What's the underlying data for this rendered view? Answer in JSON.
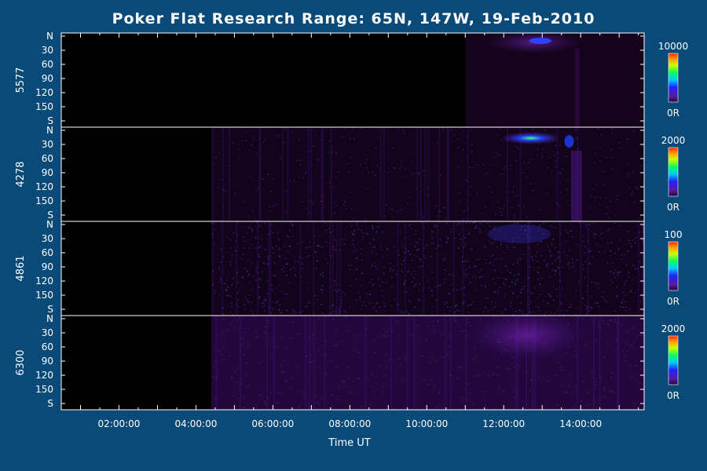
{
  "chart_data": {
    "type": "heatmap",
    "title": "Poker Flat Research Range: 65N, 147W, 19-Feb-2010",
    "xlabel": "Time UT",
    "x_ticks": [
      "02:00:00",
      "04:00:00",
      "06:00:00",
      "08:00:00",
      "10:00:00",
      "12:00:00",
      "14:00:00"
    ],
    "x_range_hours": [
      0.5,
      15.65
    ],
    "y_ticks": [
      "N",
      "30",
      "60",
      "90",
      "120",
      "150",
      "S"
    ],
    "y_range_deg": [
      0,
      180
    ],
    "panels": [
      {
        "name": "5577",
        "colorbar_max": "10000",
        "colorbar_min": "0R"
      },
      {
        "name": "4278",
        "colorbar_max": "2000",
        "colorbar_min": "0R"
      },
      {
        "name": "4861",
        "colorbar_max": "100",
        "colorbar_min": "0R"
      },
      {
        "name": "6300",
        "colorbar_max": "2000",
        "colorbar_min": "0R"
      }
    ],
    "colormap": [
      "#3a0a4a",
      "#5a1ca0",
      "#2020ff",
      "#00c8ff",
      "#00ff60",
      "#c8ff00",
      "#ffa000",
      "#ff2800"
    ],
    "background": "#0a4a78"
  }
}
